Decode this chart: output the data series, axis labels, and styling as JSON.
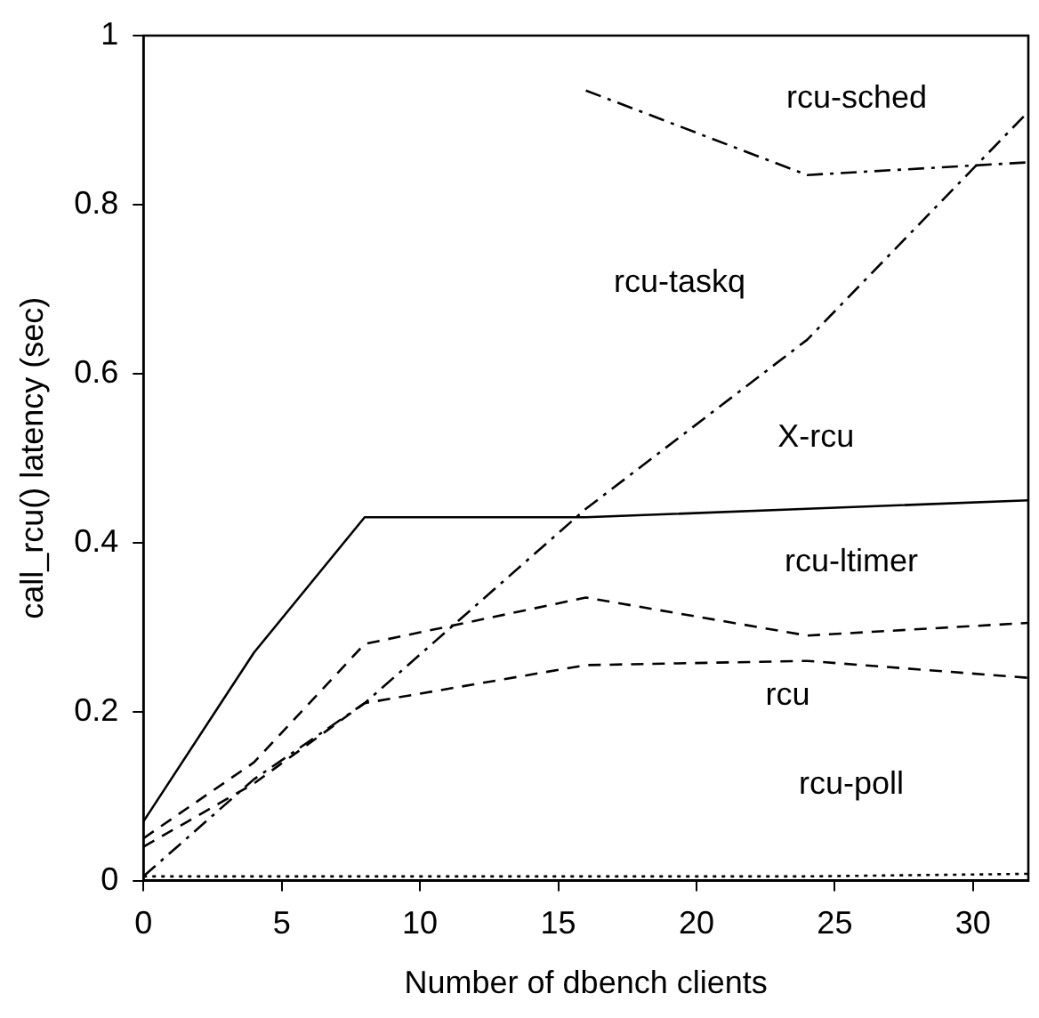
{
  "chart_data": {
    "type": "line",
    "xlabel": "Number of dbench clients",
    "ylabel": "call_rcu() latency (sec)",
    "x": [
      0,
      4,
      8,
      16,
      24,
      32
    ],
    "xlim": [
      0,
      32
    ],
    "xticks": [
      0,
      5,
      10,
      15,
      20,
      25,
      30
    ],
    "ylim": [
      0,
      1
    ],
    "yticks": [
      0,
      0.2,
      0.4,
      0.6,
      0.8,
      1
    ],
    "grid": false,
    "legend": false,
    "marker": "none",
    "series": [
      {
        "color": "#000000",
        "line_style": "dashdot",
        "values": [
          null,
          null,
          null,
          0.935,
          0.835,
          0.85
        ]
      },
      {
        "color": "#000000",
        "line_style": "dashdot",
        "values": [
          0.005,
          0.12,
          0.21,
          0.44,
          0.64,
          0.91
        ]
      },
      {
        "color": "#000000",
        "line_style": "solid",
        "values": [
          0.07,
          0.27,
          0.43,
          0.43,
          0.44,
          0.45
        ]
      },
      {
        "color": "#000000",
        "line_style": "dashed",
        "values": [
          0.05,
          0.14,
          0.28,
          0.335,
          0.29,
          0.305
        ]
      },
      {
        "color": "#000000",
        "line_style": "dashed",
        "values": [
          0.04,
          0.115,
          0.21,
          0.255,
          0.26,
          0.24
        ]
      },
      {
        "color": "#000000",
        "line_style": "dotted",
        "values": [
          0.005,
          0.005,
          0.005,
          0.005,
          0.005,
          0.008
        ]
      }
    ],
    "annotations": [
      "rcu-sched",
      "rcu-taskq",
      "X-rcu",
      "rcu-ltimer",
      "rcu",
      "rcu-poll"
    ]
  }
}
